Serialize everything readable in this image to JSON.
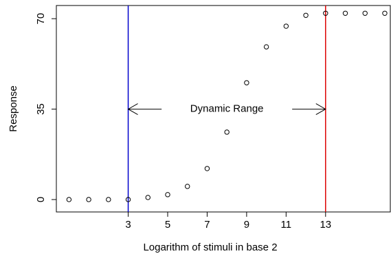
{
  "chart_data": {
    "type": "scatter",
    "x_label": "Logarithm of stimuli in base 2",
    "y_label": "Response",
    "x": [
      0,
      1,
      2,
      3,
      4,
      5,
      6,
      7,
      8,
      9,
      10,
      11,
      12,
      13,
      14,
      15,
      16
    ],
    "values": [
      0,
      0,
      0,
      0,
      0.8,
      1.9,
      5.1,
      12,
      26.1,
      45.2,
      59.1,
      67.1,
      71.3,
      72.1,
      72.1,
      72.1,
      72.1
    ],
    "xlim": [
      -0.64,
      16.28
    ],
    "ylim": [
      -4.8,
      75.1
    ],
    "xticks": [
      3,
      5,
      7,
      9,
      11,
      13
    ],
    "yticks": [
      0,
      35,
      70
    ],
    "vlines": [
      {
        "x": 3,
        "color": "#0000cc"
      },
      {
        "x": 13,
        "color": "#dd0000"
      }
    ],
    "annotation": {
      "text": "Dynamic Range",
      "x": 8,
      "y": 35
    }
  }
}
